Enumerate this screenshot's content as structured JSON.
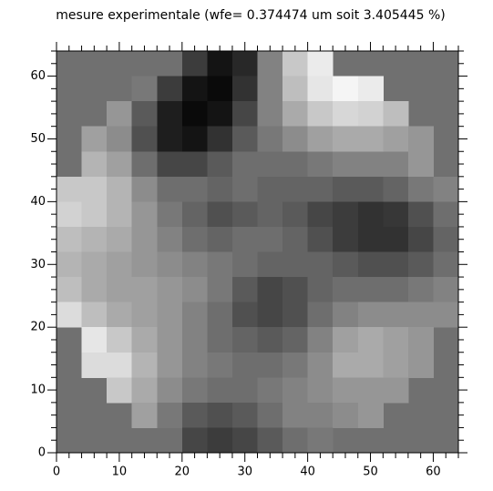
{
  "chart_data": {
    "type": "heatmap",
    "title": "mesure experimentale (wfe= 0.374474 um soit 3.405445 %)",
    "background": "#707070",
    "xlim": [
      0,
      64
    ],
    "ylim": [
      0,
      64
    ],
    "xticks": [
      0,
      10,
      20,
      30,
      40,
      50,
      60
    ],
    "yticks": [
      0,
      10,
      20,
      30,
      40,
      50,
      60
    ],
    "xminorticks": [
      2,
      4,
      6,
      8,
      12,
      14,
      16,
      18,
      22,
      24,
      26,
      28,
      32,
      34,
      36,
      38,
      42,
      44,
      46,
      48,
      52,
      54,
      56,
      58,
      62,
      64
    ],
    "yminorticks": [
      2,
      4,
      6,
      8,
      12,
      14,
      16,
      18,
      22,
      24,
      26,
      28,
      32,
      34,
      36,
      38,
      42,
      44,
      46,
      48,
      52,
      54,
      56,
      58,
      62,
      64
    ],
    "x": [
      2,
      6,
      10,
      14,
      18,
      22,
      26,
      30,
      34,
      38,
      42,
      46,
      50,
      54,
      58,
      62
    ],
    "y": [
      62,
      58,
      54,
      50,
      46,
      42,
      38,
      34,
      30,
      26,
      22,
      18,
      14,
      10,
      6,
      2
    ],
    "z": [
      [
        null,
        null,
        null,
        null,
        null,
        60,
        20,
        40,
        130,
        200,
        235,
        null,
        null,
        null,
        null,
        null
      ],
      [
        null,
        null,
        null,
        120,
        60,
        20,
        10,
        50,
        130,
        190,
        230,
        245,
        235,
        null,
        null,
        null
      ],
      [
        null,
        null,
        150,
        90,
        30,
        10,
        20,
        70,
        130,
        170,
        200,
        215,
        210,
        190,
        null,
        null
      ],
      [
        null,
        160,
        140,
        80,
        30,
        20,
        50,
        90,
        120,
        140,
        160,
        170,
        170,
        160,
        150,
        null
      ],
      [
        null,
        180,
        160,
        110,
        70,
        70,
        90,
        110,
        110,
        110,
        120,
        130,
        130,
        130,
        150,
        null
      ],
      [
        200,
        200,
        180,
        140,
        110,
        110,
        100,
        110,
        100,
        100,
        100,
        90,
        90,
        100,
        120,
        130
      ],
      [
        210,
        200,
        180,
        150,
        120,
        100,
        80,
        90,
        100,
        90,
        70,
        60,
        50,
        55,
        80,
        110
      ],
      [
        190,
        180,
        170,
        150,
        130,
        110,
        100,
        110,
        110,
        100,
        80,
        60,
        50,
        50,
        70,
        100
      ],
      [
        180,
        170,
        160,
        150,
        140,
        130,
        120,
        110,
        100,
        100,
        100,
        90,
        80,
        80,
        90,
        110
      ],
      [
        190,
        170,
        160,
        160,
        150,
        140,
        120,
        90,
        70,
        80,
        100,
        110,
        110,
        110,
        120,
        130
      ],
      [
        220,
        190,
        170,
        160,
        150,
        130,
        110,
        80,
        70,
        80,
        110,
        130,
        140,
        140,
        140,
        140
      ],
      [
        null,
        230,
        200,
        170,
        150,
        130,
        110,
        100,
        90,
        100,
        130,
        160,
        170,
        160,
        150,
        null
      ],
      [
        null,
        220,
        220,
        180,
        150,
        130,
        120,
        110,
        110,
        120,
        140,
        170,
        170,
        160,
        150,
        null
      ],
      [
        null,
        null,
        200,
        170,
        140,
        120,
        110,
        110,
        120,
        130,
        140,
        150,
        150,
        150,
        null,
        null
      ],
      [
        null,
        null,
        null,
        160,
        120,
        90,
        80,
        90,
        110,
        130,
        130,
        140,
        150,
        null,
        null,
        null
      ],
      [
        null,
        null,
        null,
        null,
        null,
        70,
        60,
        70,
        90,
        110,
        120,
        null,
        null,
        null,
        null,
        null
      ]
    ]
  }
}
